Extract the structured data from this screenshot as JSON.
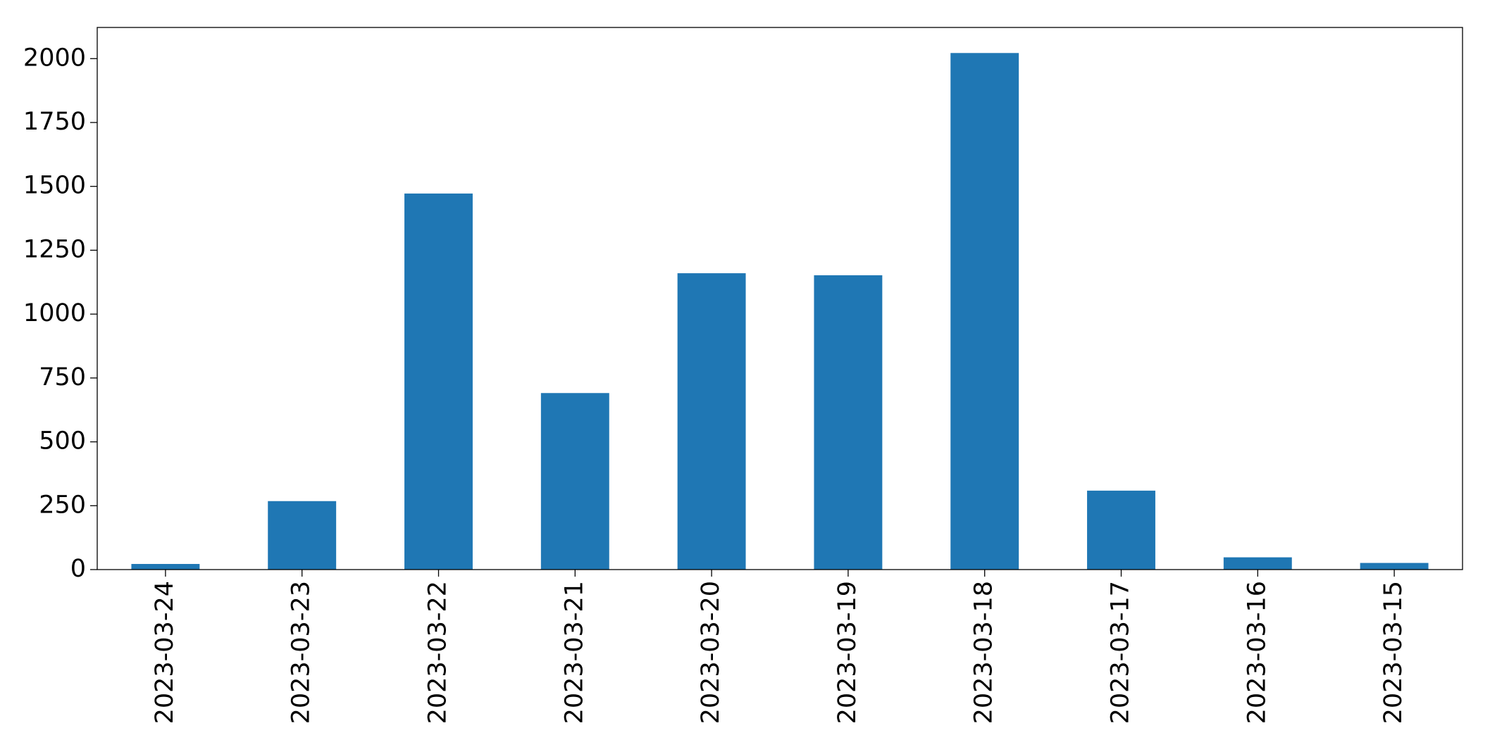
{
  "chart_data": {
    "type": "bar",
    "categories": [
      "2023-03-24",
      "2023-03-23",
      "2023-03-22",
      "2023-03-21",
      "2023-03-20",
      "2023-03-19",
      "2023-03-18",
      "2023-03-17",
      "2023-03-16",
      "2023-03-15"
    ],
    "values": [
      22,
      268,
      1472,
      691,
      1160,
      1152,
      2022,
      309,
      48,
      26
    ],
    "color": "#1f77b4",
    "ylim": [
      0,
      2122
    ],
    "yticks": [
      0,
      250,
      500,
      750,
      1000,
      1250,
      1500,
      1750,
      2000
    ],
    "grid": false
  }
}
